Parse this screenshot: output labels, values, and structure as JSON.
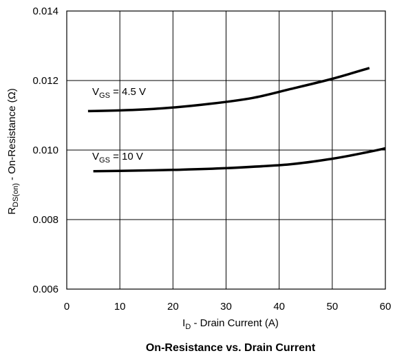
{
  "chart_data": {
    "type": "line",
    "title": "On-Resistance vs. Drain Current",
    "xlabel": {
      "prefix": "I",
      "sub": "D",
      "suffix": " - Drain Current (A)"
    },
    "ylabel": {
      "prefix": "R",
      "sub": "DS(on)",
      "suffix": " - On-Resistance (Ω)"
    },
    "xlim": [
      0,
      60
    ],
    "ylim": [
      0.006,
      0.014
    ],
    "x_ticks": [
      0,
      10,
      20,
      30,
      40,
      50,
      60
    ],
    "x_tick_labels": [
      "0",
      "10",
      "20",
      "30",
      "40",
      "50",
      "60"
    ],
    "y_ticks": [
      0.006,
      0.008,
      0.01,
      0.012,
      0.014
    ],
    "y_tick_labels": [
      "0.006",
      "0.008",
      "0.010",
      "0.012",
      "0.014"
    ],
    "grid": true,
    "line_color": "#000000",
    "series": [
      {
        "label": {
          "prefix": "V",
          "sub": "GS",
          "suffix": " = 4.5 V"
        },
        "x": [
          4,
          10,
          18,
          27,
          35,
          42,
          50,
          57
        ],
        "y": [
          0.01112,
          0.01114,
          0.0112,
          0.01133,
          0.0115,
          0.01175,
          0.01205,
          0.01236
        ]
      },
      {
        "label": {
          "prefix": "V",
          "sub": "GS",
          "suffix": " = 10 V"
        },
        "x": [
          5,
          10,
          20,
          30,
          42,
          50,
          56,
          60
        ],
        "y": [
          0.00939,
          0.0094,
          0.00943,
          0.00948,
          0.00959,
          0.00975,
          0.00992,
          0.01005
        ]
      }
    ]
  }
}
